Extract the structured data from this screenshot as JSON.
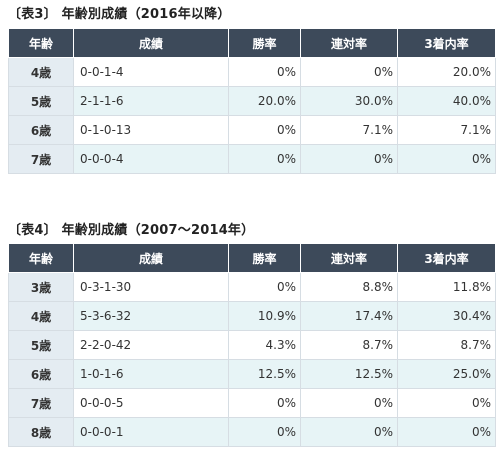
{
  "table1": {
    "caption": "〔表3〕 年齢別成績（2016年以降）",
    "headers": [
      "年齢",
      "成績",
      "勝率",
      "連対率",
      "3着内率"
    ],
    "rows": [
      [
        "4歳",
        "0-0-1-4",
        "0%",
        "0%",
        "20.0%"
      ],
      [
        "5歳",
        "2-1-1-6",
        "20.0%",
        "30.0%",
        "40.0%"
      ],
      [
        "6歳",
        "0-1-0-13",
        "0%",
        "7.1%",
        "7.1%"
      ],
      [
        "7歳",
        "0-0-0-4",
        "0%",
        "0%",
        "0%"
      ]
    ]
  },
  "table2": {
    "caption": "〔表4〕 年齢別成績（2007〜2014年）",
    "headers": [
      "年齢",
      "成績",
      "勝率",
      "連対率",
      "3着内率"
    ],
    "rows": [
      [
        "3歳",
        "0-3-1-30",
        "0%",
        "8.8%",
        "11.8%"
      ],
      [
        "4歳",
        "5-3-6-32",
        "10.9%",
        "17.4%",
        "30.4%"
      ],
      [
        "5歳",
        "2-2-0-42",
        "4.3%",
        "8.7%",
        "8.7%"
      ],
      [
        "6歳",
        "1-0-1-6",
        "12.5%",
        "12.5%",
        "25.0%"
      ],
      [
        "7歳",
        "0-0-0-5",
        "0%",
        "0%",
        "0%"
      ],
      [
        "8歳",
        "0-0-0-1",
        "0%",
        "0%",
        "0%"
      ]
    ]
  },
  "colors": {
    "header_bg": "#3d4a5a",
    "age_bg": "#e4ecf2",
    "stripe_bg": "#e7f4f6"
  }
}
